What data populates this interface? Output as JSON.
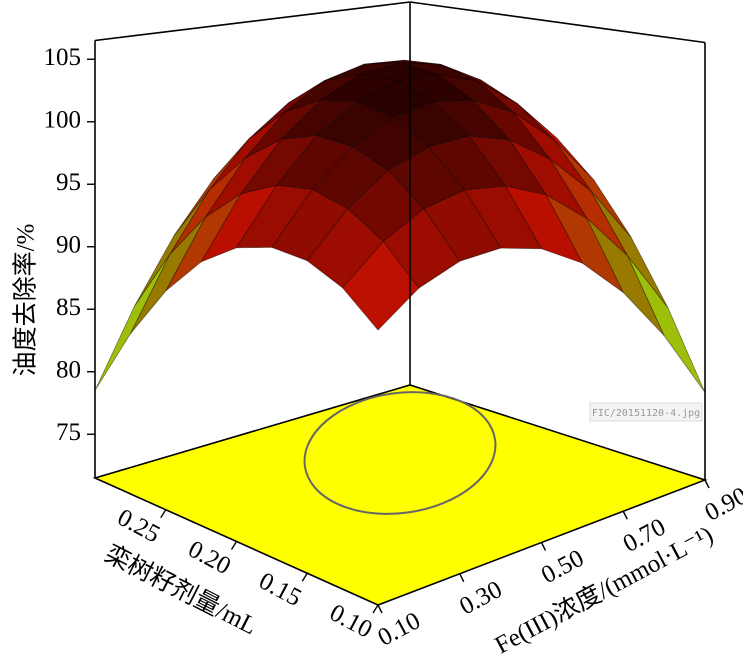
{
  "chart_data": {
    "type": "surface",
    "x_label": "Fe(III)浓度/(mmol·L⁻¹)",
    "y_label": "栾树籽剂量/mL",
    "z_label": "油度去除率/%",
    "annotation": "FIC/20151120-4.jpg",
    "x": [
      0.1,
      0.2,
      0.3,
      0.4,
      0.5,
      0.6,
      0.7,
      0.8,
      0.9
    ],
    "y": [
      0.1,
      0.125,
      0.15,
      0.175,
      0.2,
      0.225,
      0.25,
      0.275,
      0.3
    ],
    "z": [
      [
        93.5,
        95.6,
        96.5,
        96.3,
        95,
        92.6,
        89,
        84.3,
        78.5
      ],
      [
        95.6,
        98.1,
        99.5,
        99.8,
        98.9,
        97.0,
        93.9,
        89.7,
        84.3
      ],
      [
        96.5,
        99.5,
        101.4,
        102.1,
        101.8,
        100.3,
        97.6,
        93.9,
        89
      ],
      [
        96.3,
        99.8,
        102.1,
        103.3,
        103.4,
        102.4,
        100.3,
        97.0,
        92.6
      ],
      [
        95,
        98.9,
        101.8,
        103.4,
        104,
        103.4,
        101.8,
        98.9,
        95
      ],
      [
        92.6,
        97.0,
        100.3,
        102.4,
        103.4,
        103.3,
        102.1,
        99.8,
        96.3
      ],
      [
        89,
        93.9,
        97.6,
        100.3,
        101.8,
        102.1,
        101.4,
        99.5,
        96.5
      ],
      [
        84.3,
        89.7,
        93.9,
        97.0,
        98.9,
        99.8,
        99.5,
        98.1,
        95.6
      ],
      [
        78.5,
        84.3,
        89,
        92.6,
        95,
        96.3,
        96.5,
        95.6,
        93.5
      ]
    ],
    "xlim": [
      0.1,
      0.9
    ],
    "ylim": [
      0.1,
      0.3
    ],
    "zlim": [
      71.5,
      106.5
    ],
    "xticks": [
      {
        "value": 0.1,
        "label": "0.10"
      },
      {
        "value": 0.3,
        "label": "0.30"
      },
      {
        "value": 0.5,
        "label": "0.50"
      },
      {
        "value": 0.7,
        "label": "0.70"
      },
      {
        "value": 0.9,
        "label": "0.90"
      }
    ],
    "yticks": [
      {
        "value": 0.1,
        "label": "0.10"
      },
      {
        "value": 0.15,
        "label": "0.15"
      },
      {
        "value": 0.2,
        "label": "0.20"
      },
      {
        "value": 0.25,
        "label": "0.25"
      }
    ],
    "zticks": [
      75,
      80,
      85,
      90,
      95,
      100,
      105
    ],
    "colormap": [
      "#c8ff1e",
      "#8aa000",
      "#c01000",
      "#200000"
    ],
    "floor_color": "#ffff00"
  }
}
